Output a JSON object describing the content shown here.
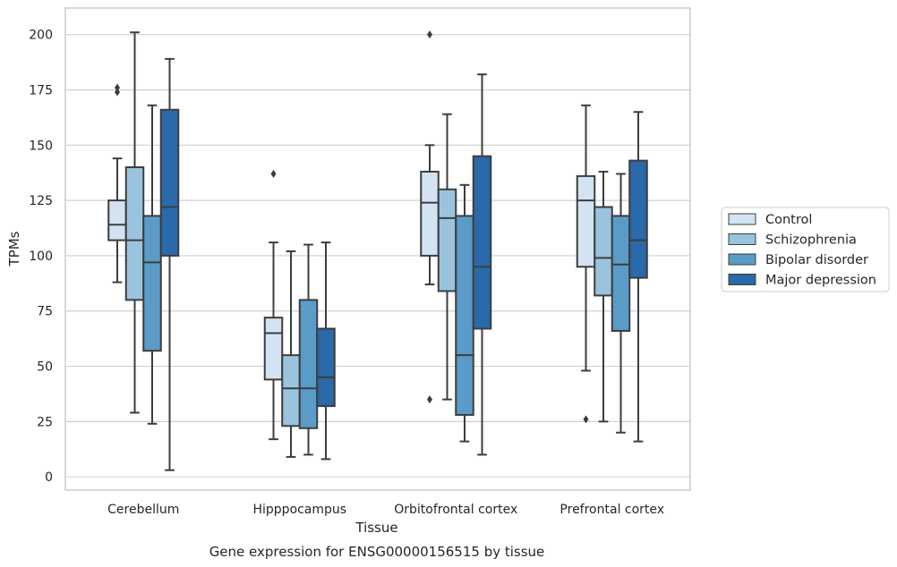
{
  "chart_data": {
    "type": "boxplot",
    "title": "Gene expression for ENSG00000156515 by tissue",
    "xlabel": "Tissue",
    "ylabel": "TPMs",
    "ylim": [
      -6,
      212
    ],
    "yticks": [
      0,
      25,
      50,
      75,
      100,
      125,
      150,
      175,
      200
    ],
    "grid": "horizontal",
    "legend_position": "right",
    "categories": [
      "Cerebellum",
      "Hipppocampus",
      "Orbitofrontal cortex",
      "Prefrontal cortex"
    ],
    "series": [
      {
        "name": "Control",
        "color": "#d3e3f1",
        "boxes": [
          {
            "whislo": 88,
            "q1": 107,
            "med": 114,
            "q3": 125,
            "whishi": 144,
            "fliers": [
              174,
              176
            ]
          },
          {
            "whislo": 17,
            "q1": 44,
            "med": 65,
            "q3": 72,
            "whishi": 106,
            "fliers": [
              137
            ]
          },
          {
            "whislo": 87,
            "q1": 100,
            "med": 124,
            "q3": 138,
            "whishi": 150,
            "fliers": [
              200,
              35
            ]
          },
          {
            "whislo": 48,
            "q1": 95,
            "med": 125,
            "q3": 136,
            "whishi": 168,
            "fliers": [
              26
            ]
          }
        ]
      },
      {
        "name": "Schizophrenia",
        "color": "#9ac4de",
        "boxes": [
          {
            "whislo": 29,
            "q1": 80,
            "med": 107,
            "q3": 140,
            "whishi": 201,
            "fliers": []
          },
          {
            "whislo": 9,
            "q1": 23,
            "med": 40,
            "q3": 55,
            "whishi": 102,
            "fliers": []
          },
          {
            "whislo": 35,
            "q1": 84,
            "med": 117,
            "q3": 130,
            "whishi": 164,
            "fliers": []
          },
          {
            "whislo": 25,
            "q1": 82,
            "med": 99,
            "q3": 122,
            "whishi": 138,
            "fliers": []
          }
        ]
      },
      {
        "name": "Bipolar disorder",
        "color": "#5a9bc8",
        "boxes": [
          {
            "whislo": 24,
            "q1": 57,
            "med": 97,
            "q3": 118,
            "whishi": 168,
            "fliers": []
          },
          {
            "whislo": 10,
            "q1": 22,
            "med": 40,
            "q3": 80,
            "whishi": 105,
            "fliers": []
          },
          {
            "whislo": 16,
            "q1": 28,
            "med": 55,
            "q3": 118,
            "whishi": 132,
            "fliers": []
          },
          {
            "whislo": 20,
            "q1": 66,
            "med": 96,
            "q3": 118,
            "whishi": 137,
            "fliers": []
          }
        ]
      },
      {
        "name": "Major depression",
        "color": "#2a69aa",
        "boxes": [
          {
            "whislo": 3,
            "q1": 100,
            "med": 122,
            "q3": 166,
            "whishi": 189,
            "fliers": []
          },
          {
            "whislo": 8,
            "q1": 32,
            "med": 45,
            "q3": 67,
            "whishi": 106,
            "fliers": []
          },
          {
            "whislo": 10,
            "q1": 67,
            "med": 95,
            "q3": 145,
            "whishi": 182,
            "fliers": []
          },
          {
            "whislo": 16,
            "q1": 90,
            "med": 107,
            "q3": 143,
            "whishi": 165,
            "fliers": []
          }
        ]
      }
    ]
  }
}
